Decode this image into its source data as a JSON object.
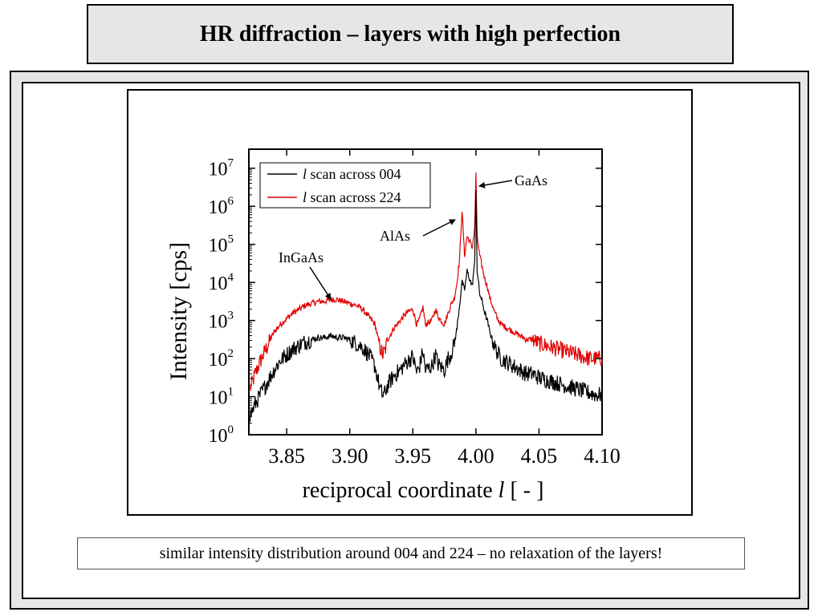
{
  "slide": {
    "title": "HR diffraction – layers with high perfection",
    "caption": "similar intensity distribution around 004 and 224 – no relaxation of the layers!"
  },
  "chart_data": {
    "type": "line",
    "xlabel_prefix": "reciprocal coordinate ",
    "xlabel_var": "l",
    "xlabel_suffix": " [ - ]",
    "ylabel": "Intensity [cps]",
    "xlim": [
      3.82,
      4.1
    ],
    "ylim_log10": [
      0,
      7.5
    ],
    "yscale": "log",
    "x_ticks": [
      {
        "value": 3.85,
        "label": "3.85"
      },
      {
        "value": 3.9,
        "label": "3.90"
      },
      {
        "value": 3.95,
        "label": "3.95"
      },
      {
        "value": 4.0,
        "label": "4.00"
      },
      {
        "value": 4.05,
        "label": "4.05"
      },
      {
        "value": 4.1,
        "label": "4.10"
      }
    ],
    "y_ticks": [
      {
        "exp": 0,
        "base": "10",
        "sup": "0"
      },
      {
        "exp": 1,
        "base": "10",
        "sup": "1"
      },
      {
        "exp": 2,
        "base": "10",
        "sup": "2"
      },
      {
        "exp": 3,
        "base": "10",
        "sup": "3"
      },
      {
        "exp": 4,
        "base": "10",
        "sup": "4"
      },
      {
        "exp": 5,
        "base": "10",
        "sup": "5"
      },
      {
        "exp": 6,
        "base": "10",
        "sup": "6"
      },
      {
        "exp": 7,
        "base": "10",
        "sup": "7"
      }
    ],
    "legend": {
      "placement": "top-left",
      "entries": [
        {
          "var": "l",
          "text": " scan across 004",
          "color": "#000000"
        },
        {
          "var": "l",
          "text": " scan across 224",
          "color": "#e00000"
        }
      ]
    },
    "series": [
      {
        "color": "#000000",
        "x": [
          3.821,
          3.825,
          3.83,
          3.835,
          3.84,
          3.845,
          3.85,
          3.855,
          3.86,
          3.865,
          3.87,
          3.875,
          3.88,
          3.885,
          3.89,
          3.895,
          3.9,
          3.905,
          3.91,
          3.915,
          3.92,
          3.924,
          3.926,
          3.928,
          3.93,
          3.935,
          3.94,
          3.945,
          3.95,
          3.953,
          3.955,
          3.958,
          3.96,
          3.965,
          3.968,
          3.97,
          3.975,
          3.978,
          3.98,
          3.983,
          3.985,
          3.987,
          3.989,
          3.991,
          3.993,
          3.995,
          3.997,
          3.999,
          4.0,
          4.001,
          4.003,
          4.005,
          4.007,
          4.009,
          4.011,
          4.013,
          4.015,
          4.018,
          4.02,
          4.025,
          4.03,
          4.035,
          4.04,
          4.045,
          4.05,
          4.055,
          4.06,
          4.065,
          4.07,
          4.075,
          4.08,
          4.085,
          4.09,
          4.095,
          4.1
        ],
        "log10_y": [
          0.5,
          0.8,
          1.1,
          1.4,
          1.7,
          1.95,
          2.1,
          2.25,
          2.35,
          2.45,
          2.5,
          2.55,
          2.55,
          2.6,
          2.55,
          2.55,
          2.5,
          2.4,
          2.3,
          2.1,
          1.8,
          1.2,
          1.05,
          1.1,
          1.3,
          1.55,
          1.7,
          1.9,
          2.05,
          1.65,
          1.75,
          2.2,
          1.7,
          1.8,
          2.1,
          1.85,
          1.7,
          2.0,
          2.1,
          2.4,
          2.8,
          3.4,
          4.0,
          3.8,
          4.3,
          4.1,
          3.9,
          4.5,
          6.5,
          4.3,
          3.7,
          3.5,
          3.2,
          3.0,
          2.7,
          2.5,
          2.3,
          2.1,
          2.0,
          1.9,
          1.8,
          1.7,
          1.6,
          1.6,
          1.5,
          1.45,
          1.4,
          1.35,
          1.3,
          1.25,
          1.2,
          1.15,
          1.1,
          1.05,
          1.05
        ]
      },
      {
        "color": "#e00000",
        "x": [
          3.821,
          3.825,
          3.83,
          3.835,
          3.84,
          3.845,
          3.85,
          3.855,
          3.86,
          3.865,
          3.87,
          3.875,
          3.88,
          3.885,
          3.89,
          3.895,
          3.9,
          3.905,
          3.91,
          3.915,
          3.92,
          3.924,
          3.926,
          3.928,
          3.93,
          3.935,
          3.94,
          3.945,
          3.95,
          3.953,
          3.955,
          3.958,
          3.96,
          3.965,
          3.968,
          3.97,
          3.975,
          3.978,
          3.98,
          3.983,
          3.985,
          3.987,
          3.989,
          3.991,
          3.993,
          3.995,
          3.997,
          3.999,
          4.0,
          4.001,
          4.003,
          4.005,
          4.007,
          4.009,
          4.011,
          4.013,
          4.015,
          4.018,
          4.02,
          4.025,
          4.03,
          4.035,
          4.04,
          4.045,
          4.05,
          4.055,
          4.06,
          4.065,
          4.07,
          4.075,
          4.08,
          4.085,
          4.09,
          4.095,
          4.1
        ],
        "log10_y": [
          1.2,
          1.6,
          2.0,
          2.35,
          2.7,
          2.9,
          3.05,
          3.2,
          3.3,
          3.4,
          3.45,
          3.5,
          3.5,
          3.55,
          3.55,
          3.5,
          3.45,
          3.4,
          3.3,
          3.1,
          2.9,
          2.3,
          2.1,
          2.2,
          2.5,
          2.8,
          3.0,
          3.2,
          3.3,
          2.9,
          3.0,
          3.35,
          2.9,
          3.0,
          3.3,
          3.1,
          2.9,
          3.2,
          3.4,
          3.6,
          4.0,
          4.6,
          5.9,
          4.7,
          5.2,
          5.1,
          4.9,
          5.4,
          6.9,
          5.2,
          4.7,
          4.4,
          4.1,
          3.9,
          3.6,
          3.4,
          3.2,
          3.0,
          2.9,
          2.8,
          2.7,
          2.6,
          2.5,
          2.5,
          2.4,
          2.35,
          2.3,
          2.25,
          2.2,
          2.15,
          2.1,
          2.05,
          2.0,
          2.0,
          2.0
        ]
      }
    ],
    "annotations": [
      {
        "text": "GaAs"
      },
      {
        "text": "AlAs"
      },
      {
        "text": "InGaAs"
      }
    ]
  }
}
